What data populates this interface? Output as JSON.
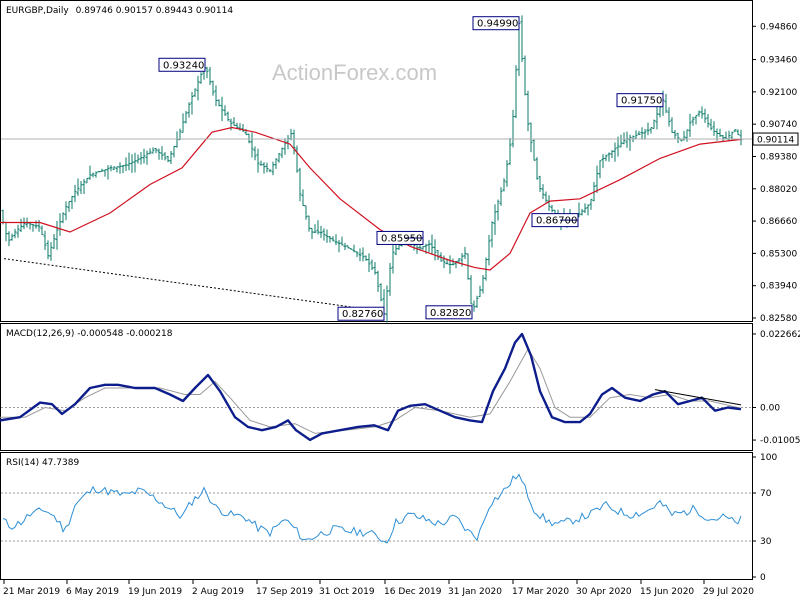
{
  "header": {
    "symbol_label": "EURGBP,Daily",
    "ohlc": "0.89746 0.90157 0.89443 0.90114"
  },
  "watermark": "ActionForex.com",
  "colors": {
    "bars": "#0b7a6a",
    "ma": "#d01020",
    "macd": "#0d1e8c",
    "signal": "#9a9a9a",
    "rsi": "#2d8fd6",
    "trendline": "#000000",
    "callout_border": "#000080"
  },
  "chart_data": [
    {
      "type": "ohlc",
      "title": "EURGBP,Daily",
      "ylim": [
        0.8258,
        0.9563
      ],
      "y_ticks": [
        "0.94860",
        "0.93460",
        "0.92100",
        "0.90740",
        "0.89380",
        "0.88020",
        "0.86660",
        "0.85300",
        "0.83940",
        "0.82580"
      ],
      "x_ticks": [
        "21 Mar 2019",
        "6 May 2019",
        "19 Jun 2019",
        "2 Aug 2019",
        "17 Sep 2019",
        "31 Oct 2019",
        "16 Dec 2019",
        "31 Jan 2020",
        "17 Mar 2020",
        "30 Apr 2020",
        "15 Jun 2020",
        "29 Jul 2020"
      ],
      "last_price": "0.90114",
      "price_path": [
        [
          0,
          0.871
        ],
        [
          8,
          0.858
        ],
        [
          15,
          0.862
        ],
        [
          25,
          0.866
        ],
        [
          40,
          0.864
        ],
        [
          48,
          0.852
        ],
        [
          58,
          0.864
        ],
        [
          65,
          0.872
        ],
        [
          75,
          0.879
        ],
        [
          90,
          0.886
        ],
        [
          110,
          0.889
        ],
        [
          125,
          0.89
        ],
        [
          140,
          0.893
        ],
        [
          155,
          0.897
        ],
        [
          168,
          0.892
        ],
        [
          178,
          0.902
        ],
        [
          190,
          0.917
        ],
        [
          205,
          0.9324
        ],
        [
          215,
          0.918
        ],
        [
          230,
          0.908
        ],
        [
          245,
          0.904
        ],
        [
          258,
          0.891
        ],
        [
          270,
          0.888
        ],
        [
          283,
          0.898
        ],
        [
          292,
          0.904
        ],
        [
          300,
          0.878
        ],
        [
          310,
          0.862
        ],
        [
          320,
          0.862
        ],
        [
          335,
          0.858
        ],
        [
          350,
          0.855
        ],
        [
          365,
          0.851
        ],
        [
          375,
          0.845
        ],
        [
          384,
          0.8276
        ],
        [
          392,
          0.853
        ],
        [
          405,
          0.8595
        ],
        [
          418,
          0.855
        ],
        [
          430,
          0.857
        ],
        [
          440,
          0.85
        ],
        [
          452,
          0.848
        ],
        [
          465,
          0.853
        ],
        [
          472,
          0.8282
        ],
        [
          482,
          0.84
        ],
        [
          492,
          0.866
        ],
        [
          505,
          0.885
        ],
        [
          512,
          0.904
        ],
        [
          519,
          0.9499
        ],
        [
          527,
          0.91
        ],
        [
          538,
          0.882
        ],
        [
          550,
          0.872
        ],
        [
          560,
          0.867
        ],
        [
          575,
          0.868
        ],
        [
          590,
          0.874
        ],
        [
          600,
          0.892
        ],
        [
          615,
          0.897
        ],
        [
          625,
          0.901
        ],
        [
          638,
          0.903
        ],
        [
          650,
          0.905
        ],
        [
          663,
          0.9175
        ],
        [
          672,
          0.904
        ],
        [
          682,
          0.9
        ],
        [
          690,
          0.908
        ],
        [
          700,
          0.913
        ],
        [
          712,
          0.905
        ],
        [
          725,
          0.901
        ],
        [
          735,
          0.905
        ],
        [
          741,
          0.901
        ]
      ],
      "ma_path": [
        [
          0,
          0.866
        ],
        [
          40,
          0.866
        ],
        [
          70,
          0.862
        ],
        [
          110,
          0.87
        ],
        [
          150,
          0.882
        ],
        [
          182,
          0.889
        ],
        [
          212,
          0.904
        ],
        [
          232,
          0.906
        ],
        [
          255,
          0.904
        ],
        [
          290,
          0.899
        ],
        [
          310,
          0.889
        ],
        [
          340,
          0.876
        ],
        [
          380,
          0.863
        ],
        [
          410,
          0.856
        ],
        [
          450,
          0.85
        ],
        [
          475,
          0.847
        ],
        [
          490,
          0.846
        ],
        [
          510,
          0.853
        ],
        [
          530,
          0.87
        ],
        [
          550,
          0.875
        ],
        [
          580,
          0.876
        ],
        [
          620,
          0.884
        ],
        [
          660,
          0.893
        ],
        [
          700,
          0.899
        ],
        [
          741,
          0.901
        ]
      ],
      "annotations": [
        {
          "label": "0.93240",
          "price": 0.9324,
          "x": 205,
          "side": "left"
        },
        {
          "label": "0.94990",
          "price": 0.9499,
          "x": 519,
          "side": "left"
        },
        {
          "label": "0.91750",
          "price": 0.9175,
          "x": 663,
          "side": "left"
        },
        {
          "label": "0.85950",
          "price": 0.8595,
          "x": 405,
          "side": "right"
        },
        {
          "label": "0.86700",
          "price": 0.867,
          "x": 560,
          "side": "right"
        },
        {
          "label": "0.82760",
          "price": 0.8276,
          "x": 384,
          "side": "left"
        },
        {
          "label": "0.82820",
          "price": 0.8282,
          "x": 472,
          "side": "left"
        }
      ],
      "trendline": [
        [
          4,
          0.8508
        ],
        [
          384,
          0.8285
        ]
      ]
    },
    {
      "type": "line",
      "title": "MACD(12,26,9) -0.000548 -0.000218",
      "ylim": [
        -0.0125,
        0.0245
      ],
      "y_ticks": [
        "0.022662",
        "0.00",
        "-0.010052"
      ],
      "macd_path": [
        [
          0,
          -0.004
        ],
        [
          20,
          -0.003
        ],
        [
          40,
          0.0015
        ],
        [
          52,
          0.001
        ],
        [
          62,
          -0.002
        ],
        [
          75,
          0.001
        ],
        [
          90,
          0.006
        ],
        [
          105,
          0.007
        ],
        [
          118,
          0.007
        ],
        [
          135,
          0.006
        ],
        [
          155,
          0.006
        ],
        [
          170,
          0.004
        ],
        [
          183,
          0.002
        ],
        [
          195,
          0.006
        ],
        [
          208,
          0.01
        ],
        [
          220,
          0.005
        ],
        [
          235,
          -0.003
        ],
        [
          248,
          -0.006
        ],
        [
          262,
          -0.007
        ],
        [
          276,
          -0.006
        ],
        [
          288,
          -0.004
        ],
        [
          296,
          -0.007
        ],
        [
          310,
          -0.01
        ],
        [
          322,
          -0.008
        ],
        [
          340,
          -0.007
        ],
        [
          358,
          -0.006
        ],
        [
          374,
          -0.0055
        ],
        [
          388,
          -0.007
        ],
        [
          398,
          -0.001
        ],
        [
          410,
          0.0005
        ],
        [
          425,
          0.001
        ],
        [
          440,
          -0.001
        ],
        [
          455,
          -0.003
        ],
        [
          470,
          -0.004
        ],
        [
          482,
          -0.0045
        ],
        [
          493,
          0.005
        ],
        [
          505,
          0.012
        ],
        [
          515,
          0.02
        ],
        [
          522,
          0.022662
        ],
        [
          531,
          0.016
        ],
        [
          540,
          0.005
        ],
        [
          552,
          -0.003
        ],
        [
          565,
          -0.0045
        ],
        [
          580,
          -0.0045
        ],
        [
          590,
          -0.002
        ],
        [
          602,
          0.004
        ],
        [
          612,
          0.006
        ],
        [
          625,
          0.003
        ],
        [
          640,
          0.002
        ],
        [
          653,
          0.004
        ],
        [
          665,
          0.005
        ],
        [
          678,
          0.001
        ],
        [
          690,
          0.002
        ],
        [
          702,
          0.003
        ],
        [
          715,
          -0.001
        ],
        [
          728,
          0.0
        ],
        [
          741,
          -0.000548
        ]
      ],
      "signal_path": [
        [
          0,
          -0.003
        ],
        [
          25,
          -0.003
        ],
        [
          45,
          0.0
        ],
        [
          65,
          -0.001
        ],
        [
          85,
          0.003
        ],
        [
          105,
          0.006
        ],
        [
          130,
          0.006
        ],
        [
          160,
          0.006
        ],
        [
          185,
          0.004
        ],
        [
          200,
          0.004
        ],
        [
          215,
          0.008
        ],
        [
          230,
          0.003
        ],
        [
          250,
          -0.004
        ],
        [
          270,
          -0.006
        ],
        [
          295,
          -0.005
        ],
        [
          315,
          -0.008
        ],
        [
          345,
          -0.007
        ],
        [
          375,
          -0.006
        ],
        [
          395,
          -0.004
        ],
        [
          415,
          0.0
        ],
        [
          440,
          -0.001
        ],
        [
          470,
          -0.003
        ],
        [
          490,
          -0.002
        ],
        [
          510,
          0.008
        ],
        [
          528,
          0.018
        ],
        [
          540,
          0.012
        ],
        [
          555,
          0.0
        ],
        [
          570,
          -0.003
        ],
        [
          590,
          -0.003
        ],
        [
          610,
          0.003
        ],
        [
          630,
          0.004
        ],
        [
          650,
          0.003
        ],
        [
          670,
          0.004
        ],
        [
          690,
          0.002
        ],
        [
          710,
          0.002
        ],
        [
          741,
          -0.000218
        ]
      ],
      "trendline": [
        [
          655,
          0.0055
        ],
        [
          741,
          0.0008
        ]
      ],
      "zero_line": 0
    },
    {
      "type": "line",
      "title": "RSI(14) 47.7389",
      "ylim": [
        0,
        100
      ],
      "y_ticks": [
        "100",
        "70",
        "30",
        "0"
      ],
      "levels": [
        70,
        30
      ],
      "rsi_path": [
        [
          0,
          50
        ],
        [
          10,
          42
        ],
        [
          20,
          45
        ],
        [
          30,
          52
        ],
        [
          45,
          56
        ],
        [
          55,
          50
        ],
        [
          65,
          38
        ],
        [
          75,
          60
        ],
        [
          85,
          68
        ],
        [
          95,
          74
        ],
        [
          110,
          71
        ],
        [
          125,
          68
        ],
        [
          140,
          72
        ],
        [
          155,
          66
        ],
        [
          170,
          57
        ],
        [
          182,
          50
        ],
        [
          192,
          63
        ],
        [
          205,
          73
        ],
        [
          215,
          58
        ],
        [
          230,
          52
        ],
        [
          245,
          50
        ],
        [
          258,
          41
        ],
        [
          270,
          37
        ],
        [
          285,
          48
        ],
        [
          295,
          40
        ],
        [
          305,
          30
        ],
        [
          320,
          36
        ],
        [
          335,
          40
        ],
        [
          352,
          38
        ],
        [
          368,
          37
        ],
        [
          380,
          33
        ],
        [
          386,
          28
        ],
        [
          395,
          45
        ],
        [
          410,
          52
        ],
        [
          425,
          48
        ],
        [
          440,
          44
        ],
        [
          455,
          50
        ],
        [
          468,
          38
        ],
        [
          478,
          33
        ],
        [
          490,
          62
        ],
        [
          500,
          68
        ],
        [
          510,
          78
        ],
        [
          518,
          86
        ],
        [
          526,
          72
        ],
        [
          535,
          55
        ],
        [
          548,
          46
        ],
        [
          560,
          44
        ],
        [
          575,
          48
        ],
        [
          590,
          52
        ],
        [
          605,
          60
        ],
        [
          618,
          55
        ],
        [
          630,
          52
        ],
        [
          645,
          54
        ],
        [
          660,
          62
        ],
        [
          672,
          52
        ],
        [
          685,
          54
        ],
        [
          695,
          57
        ],
        [
          710,
          48
        ],
        [
          725,
          50
        ],
        [
          735,
          45
        ],
        [
          741,
          47.7389
        ]
      ]
    }
  ]
}
